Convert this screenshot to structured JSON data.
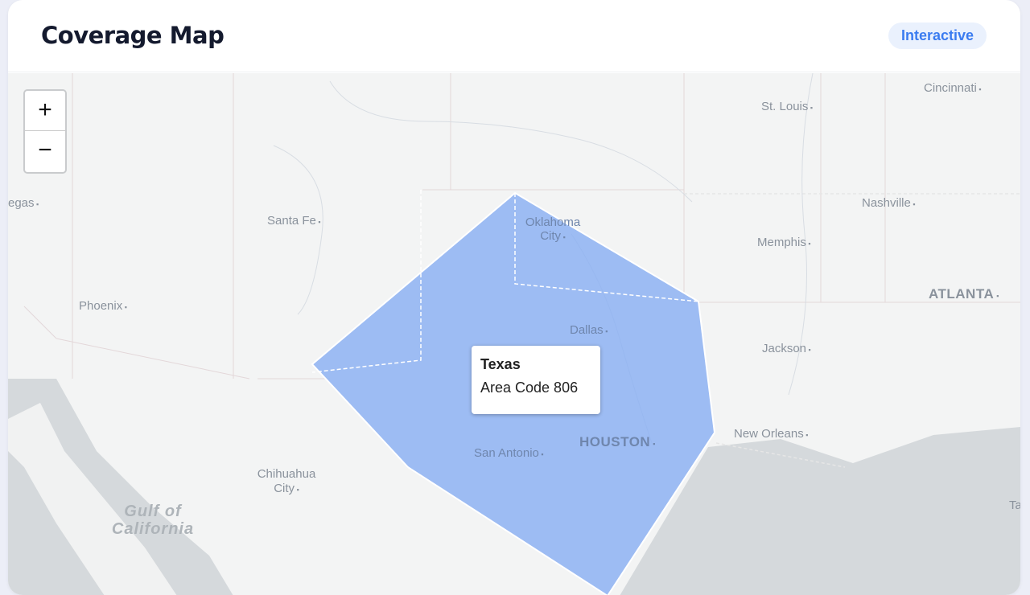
{
  "header": {
    "title": "Coverage Map",
    "badge": "Interactive"
  },
  "map": {
    "zoom_in": "+",
    "zoom_out": "−",
    "highlight_color": "#8db2f2",
    "cities": [
      "Cincinnati",
      "St. Louis",
      "Nashville",
      "Memphis",
      "ATLANTA",
      "Jackson",
      "New Orleans",
      "Oklahoma City",
      "Dallas",
      "HOUSTON",
      "San Antonio",
      "Santa Fe",
      "Phoenix",
      "Chihuahua City",
      "egas",
      "Ta"
    ],
    "water_labels": {
      "gulf_of_california": "Gulf of California"
    },
    "tooltip": {
      "title": "Texas",
      "subtitle": "Area Code 806"
    }
  }
}
